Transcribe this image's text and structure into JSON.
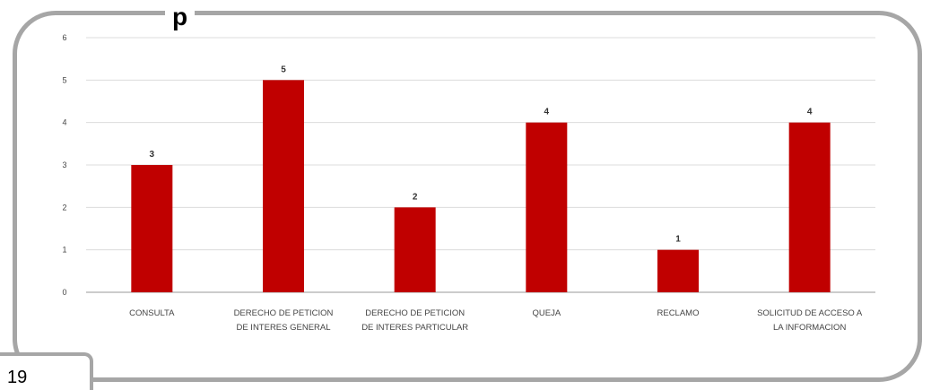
{
  "page": {
    "heading": "p",
    "page_number": "19"
  },
  "chart_data": {
    "type": "bar",
    "categories": [
      [
        "CONSULTA"
      ],
      [
        "DERECHO DE PETICION",
        "DE INTERES GENERAL"
      ],
      [
        "DERECHO DE PETICION",
        "DE INTERES PARTICULAR"
      ],
      [
        "QUEJA"
      ],
      [
        "RECLAMO"
      ],
      [
        "SOLICITUD DE ACCESO A",
        "LA INFORMACION"
      ]
    ],
    "values": [
      3,
      5,
      2,
      4,
      1,
      4
    ],
    "data_labels": [
      "3",
      "5",
      "2",
      "4",
      "1",
      "4"
    ],
    "y_ticks": [
      "0",
      "1",
      "2",
      "3",
      "4",
      "5",
      "6"
    ],
    "ylim": [
      0,
      6
    ],
    "grid": true,
    "bar_color": "#c00000",
    "title": "",
    "xlabel": "",
    "ylabel": ""
  }
}
